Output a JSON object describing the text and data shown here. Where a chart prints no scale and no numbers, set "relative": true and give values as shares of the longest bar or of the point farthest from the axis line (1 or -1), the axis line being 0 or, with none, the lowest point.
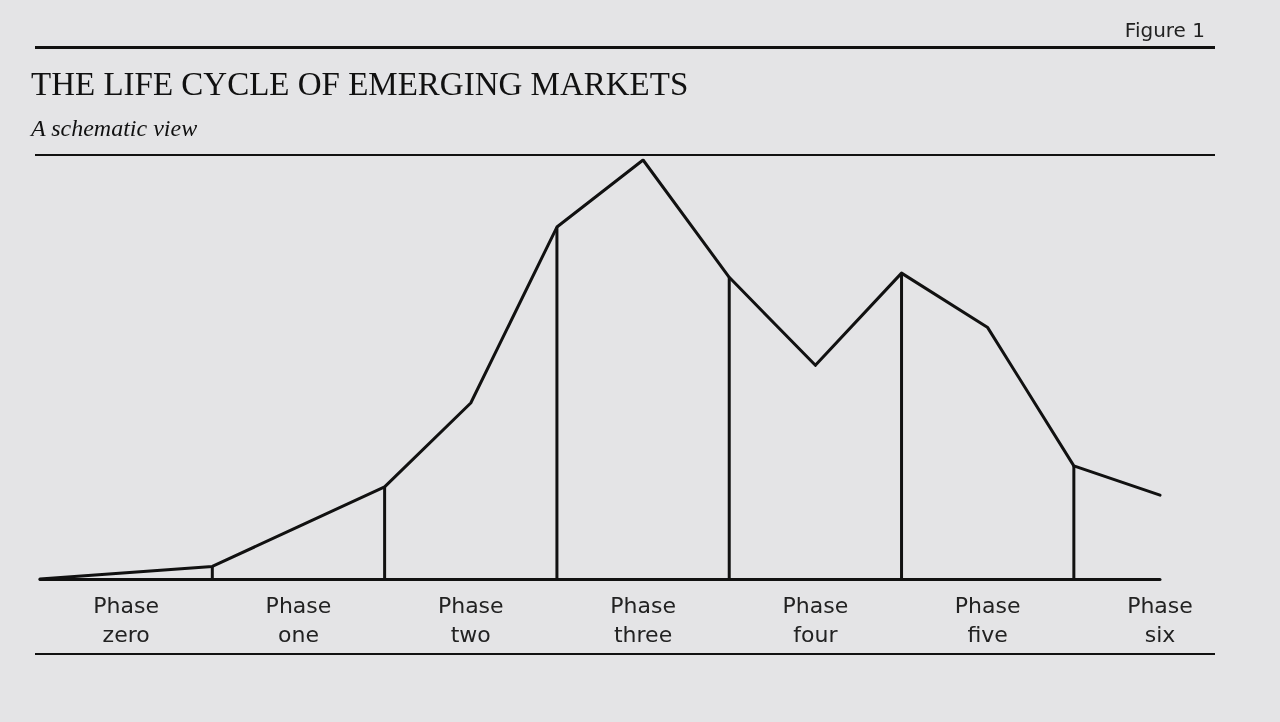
{
  "chart_data": {
    "type": "line",
    "title": "THE LIFE CYCLE OF EMERGING MARKETS",
    "subtitle": "A schematic view",
    "annotations": [
      "Figure 1"
    ],
    "relative": true,
    "marker": "none",
    "grid": false,
    "categories": [
      null,
      "Phase zero",
      null,
      "Phase one",
      null,
      "Phase two",
      null,
      "Phase three",
      null,
      "Phase four",
      null,
      "Phase five",
      null,
      "Phase six"
    ],
    "series": [
      {
        "color": "#111111",
        "values": [
          0,
          0.015,
          0.03,
          0.125,
          0.22,
          0.42,
          0.84,
          1,
          0.72,
          0.51,
          0.73,
          0.6,
          0.27,
          0.2
        ]
      },
      {
        "type": "bar",
        "color": "#111111",
        "values": [
          null,
          null,
          0.03,
          null,
          0.22,
          null,
          0.84,
          null,
          0.72,
          null,
          0.73,
          null,
          0.27,
          null
        ]
      }
    ]
  }
}
